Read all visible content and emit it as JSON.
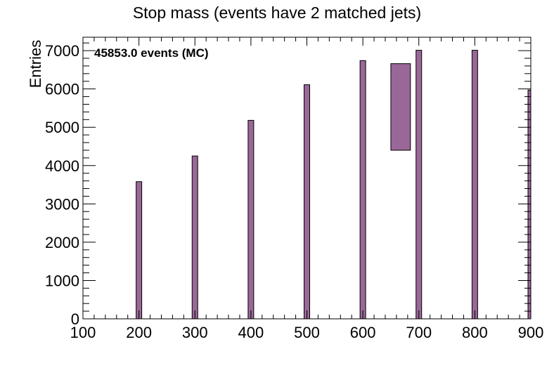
{
  "chart_data": {
    "type": "bar",
    "title": "Stop mass (events have 2 matched jets)",
    "ylabel": "Entries",
    "xlabel": "",
    "annotation": "45853.0 events (MC)",
    "xlim": [
      100,
      900
    ],
    "ylim": [
      0,
      7350
    ],
    "grid": false,
    "legend": "none",
    "x_ticks": [
      100,
      200,
      300,
      400,
      500,
      600,
      700,
      800,
      900
    ],
    "y_ticks": [
      0,
      1000,
      2000,
      3000,
      4000,
      5000,
      6000,
      7000
    ],
    "bins": [
      {
        "x0": 195,
        "x1": 205,
        "value": 3580
      },
      {
        "x0": 295,
        "x1": 305,
        "value": 4250
      },
      {
        "x0": 395,
        "x1": 405,
        "value": 5180
      },
      {
        "x0": 495,
        "x1": 505,
        "value": 6110
      },
      {
        "x0": 595,
        "x1": 605,
        "value": 6740
      },
      {
        "x0": 695,
        "x1": 705,
        "value": 7010
      },
      {
        "x0": 795,
        "x1": 805,
        "value": 7010
      },
      {
        "x0": 895,
        "x1": 905,
        "value": 5970
      }
    ],
    "band": {
      "x0": 650,
      "x1": 685,
      "y0": 4400,
      "y1": 6660
    },
    "colors": {
      "fill": "#9a6898",
      "stroke": "#000000"
    }
  }
}
